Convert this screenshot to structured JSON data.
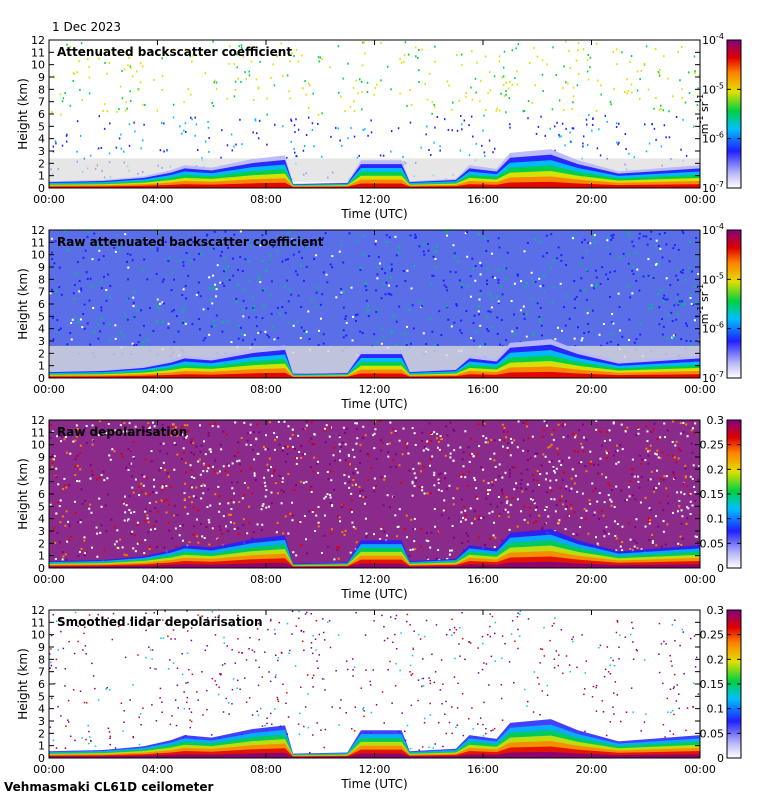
{
  "date_label": "1 Dec 2023",
  "footer_label": "Vehmasmaki CL61D ceilometer",
  "chart_data": [
    {
      "type": "heatmap",
      "title": "Attenuated backscatter coefficient",
      "xlabel": "Time (UTC)",
      "ylabel": "Height (km)",
      "x_ticks": [
        "00:00",
        "04:00",
        "08:00",
        "12:00",
        "16:00",
        "20:00",
        "00:00"
      ],
      "y_ticks": [
        "0",
        "1",
        "2",
        "3",
        "4",
        "5",
        "6",
        "7",
        "8",
        "9",
        "10",
        "11",
        "12"
      ],
      "ylim": [
        0,
        12
      ],
      "colorbar": {
        "scale": "log",
        "ticks": [
          "10",
          "10",
          "10",
          "10"
        ],
        "exponents": [
          "-7",
          "-6",
          "-5",
          "-4"
        ],
        "unit": "m",
        "unit_exp1": "-1",
        "unit_mid": " sr",
        "unit_exp2": "-1"
      }
    },
    {
      "type": "heatmap",
      "title": "Raw attenuated backscatter coefficient",
      "xlabel": "Time (UTC)",
      "ylabel": "Height (km)",
      "x_ticks": [
        "00:00",
        "04:00",
        "08:00",
        "12:00",
        "16:00",
        "20:00",
        "00:00"
      ],
      "y_ticks": [
        "0",
        "1",
        "2",
        "3",
        "4",
        "5",
        "6",
        "7",
        "8",
        "9",
        "10",
        "11",
        "12"
      ],
      "ylim": [
        0,
        12
      ],
      "colorbar": {
        "scale": "log",
        "ticks": [
          "10",
          "10",
          "10",
          "10"
        ],
        "exponents": [
          "-7",
          "-6",
          "-5",
          "-4"
        ],
        "unit": "m",
        "unit_exp1": "-1",
        "unit_mid": " sr",
        "unit_exp2": "-1"
      }
    },
    {
      "type": "heatmap",
      "title": "Raw depolarisation",
      "xlabel": "Time (UTC)",
      "ylabel": "Height (km)",
      "x_ticks": [
        "00:00",
        "04:00",
        "08:00",
        "12:00",
        "16:00",
        "20:00",
        "00:00"
      ],
      "y_ticks": [
        "0",
        "1",
        "2",
        "3",
        "4",
        "5",
        "6",
        "7",
        "8",
        "9",
        "10",
        "11",
        "12"
      ],
      "ylim": [
        0,
        12
      ],
      "colorbar": {
        "scale": "linear",
        "ticks": [
          "0",
          "0.05",
          "0.1",
          "0.15",
          "0.2",
          "0.25",
          "0.3"
        ]
      }
    },
    {
      "type": "heatmap",
      "title": "Smoothed lidar depolarisation",
      "xlabel": "Time (UTC)",
      "ylabel": "Height (km)",
      "x_ticks": [
        "00:00",
        "04:00",
        "08:00",
        "12:00",
        "16:00",
        "20:00",
        "00:00"
      ],
      "y_ticks": [
        "0",
        "1",
        "2",
        "3",
        "4",
        "5",
        "6",
        "7",
        "8",
        "9",
        "10",
        "11",
        "12"
      ],
      "ylim": [
        0,
        12
      ],
      "colorbar": {
        "scale": "linear",
        "ticks": [
          "0",
          "0.05",
          "0.1",
          "0.15",
          "0.2",
          "0.25",
          "0.3"
        ]
      }
    }
  ]
}
